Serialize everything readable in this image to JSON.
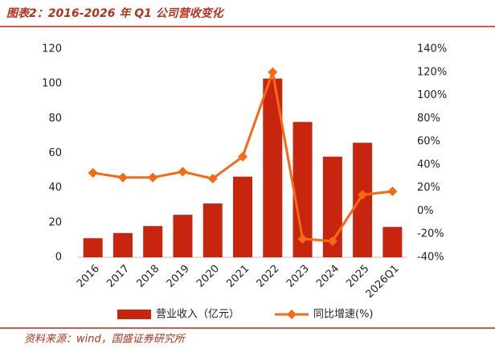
{
  "title": "图表2：2016-2026 年 Q1 公司营收变化",
  "source": "资料来源：wind，国盛证券研究所",
  "chart_data": {
    "type": "bar-line",
    "categories": [
      "2016",
      "2017",
      "2018",
      "2019",
      "2020",
      "2021",
      "2022",
      "2023",
      "2024",
      "2025",
      "2026Q1"
    ],
    "series": [
      {
        "name": "营业收入（亿元）",
        "color": "#c8250f",
        "type": "bar",
        "values": [
          11,
          14,
          18,
          24.5,
          31,
          46.5,
          103,
          78,
          58,
          66,
          17.5
        ]
      },
      {
        "name": "同比增速(%)",
        "color": "#f56a13",
        "type": "line",
        "axis": "y2",
        "values": [
          33,
          29,
          29,
          34,
          28,
          47,
          120,
          -24,
          -26,
          14,
          17
        ]
      }
    ],
    "ylim": [
      0,
      120
    ],
    "yticks": [
      0,
      20,
      40,
      60,
      80,
      100,
      120
    ],
    "y2lim": [
      -40,
      140
    ],
    "y2ticks": [
      {
        "value": -40,
        "label": "-40%"
      },
      {
        "value": -20,
        "label": "-20%"
      },
      {
        "value": 0,
        "label": "0%"
      },
      {
        "value": 20,
        "label": "20%"
      },
      {
        "value": 40,
        "label": "40%"
      },
      {
        "value": 60,
        "label": "60%"
      },
      {
        "value": 80,
        "label": "80%"
      },
      {
        "value": 100,
        "label": "100%"
      },
      {
        "value": 120,
        "label": "120%"
      },
      {
        "value": 140,
        "label": "140%"
      }
    ]
  }
}
